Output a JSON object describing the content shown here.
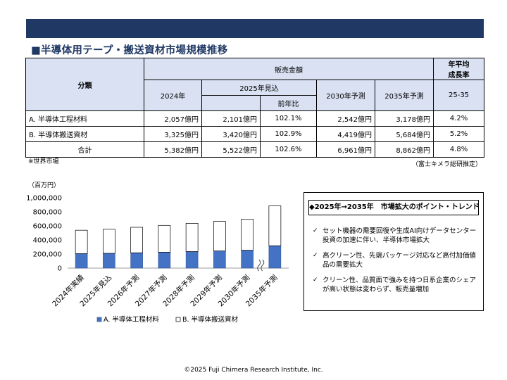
{
  "page_title": "■半導体用テープ・搬送資材市場規模推移",
  "table": {
    "h_category": "分類",
    "h_sales": "販売金額",
    "h_cagr_line1": "年平均",
    "h_cagr_line2": "成長率",
    "h_cols": [
      "2024年",
      "2025年見込",
      "2030年予測",
      "2035年予測"
    ],
    "h_yoy": "前年比",
    "h_cagr_period": "25-35",
    "rows": [
      {
        "label": "A. 半導体工程材料",
        "v2024": "2,057億円",
        "v2025": "2,101億円",
        "yoy": "102.1%",
        "v2030": "2,542億円",
        "v2035": "3,178億円",
        "cagr": "4.2%"
      },
      {
        "label": "B. 半導体搬送資材",
        "v2024": "3,325億円",
        "v2025": "3,420億円",
        "yoy": "102.9%",
        "v2030": "4,419億円",
        "v2035": "5,684億円",
        "cagr": "5.2%"
      },
      {
        "label": "合計",
        "v2024": "5,382億円",
        "v2025": "5,522億円",
        "yoy": "102.6%",
        "v2030": "6,961億円",
        "v2035": "8,862億円",
        "cagr": "4.8%"
      }
    ]
  },
  "note_world": "※世界市場",
  "note_source": "（富士キメラ総研推定）",
  "chart_data": {
    "type": "bar",
    "stacked": true,
    "ylabel": "（百万円）",
    "ylim": [
      0,
      1000000
    ],
    "yticks": [
      "0",
      "200,000",
      "400,000",
      "600,000",
      "800,000",
      "1,000,000"
    ],
    "categories": [
      "2024年実績",
      "2025年見込",
      "2026年予測",
      "2027年予測",
      "2028年予測",
      "2029年予測",
      "2030年予測",
      "2035年予測"
    ],
    "series": [
      {
        "name": "A. 半導体工程材料",
        "color": "#4472c4",
        "values": [
          205700,
          210100,
          218000,
          226000,
          235000,
          244000,
          254200,
          317800
        ]
      },
      {
        "name": "B. 半導体搬送資材",
        "color": "#ffffff",
        "values": [
          332500,
          342000,
          362000,
          381000,
          401000,
          420000,
          441900,
          568400
        ]
      }
    ],
    "axis_break_before": "2035年予測",
    "legend": "bottom"
  },
  "trend": {
    "title": "◆2025年→2035年　市場拡大のポイント・トレンド",
    "items": [
      "セット機器の需要回復や生成AI向けデータセンター投資の加速に伴い、半導体市場拡大",
      "高クリーン性、先端パッケージ対応など高付加価値品の需要拡大",
      "クリーン性、品質面で強みを持つ日系企業のシェアが高い状態は変わらず、販売量増加"
    ],
    "check_icon": "✓"
  },
  "footer": "©2025 Fuji Chimera Research Institute, Inc."
}
